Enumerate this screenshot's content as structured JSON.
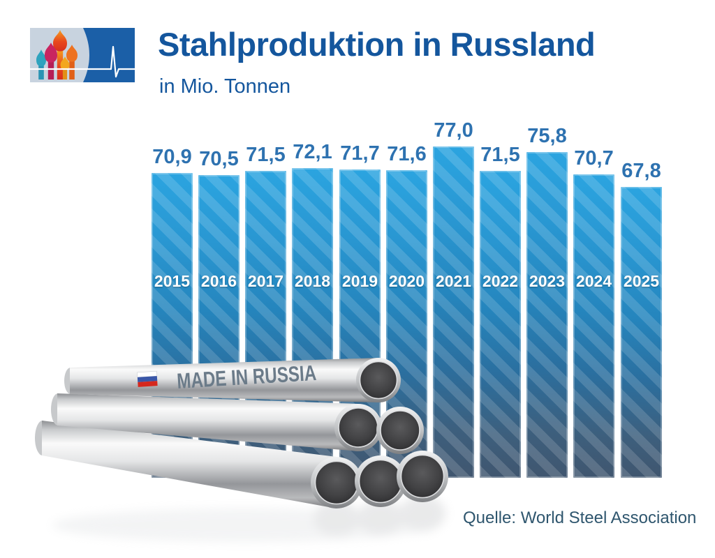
{
  "header": {
    "title": "Stahlproduktion in Russland",
    "subtitle": "in Mio. Tonnen",
    "title_color": "#14569D",
    "logo": {
      "left_motif": "st-basils-cathedral-domes",
      "right_motif": "heartbeat-pulse-line",
      "panel_light": "#C8D3DF",
      "panel_dark": "#1B5FA7",
      "dome_colors": [
        "#2FA3BE",
        "#C92460",
        "#E8471E",
        "#F3A71D",
        "#EE7220"
      ]
    }
  },
  "chart_data": {
    "type": "bar",
    "categories": [
      "2015",
      "2016",
      "2017",
      "2018",
      "2019",
      "2020",
      "2021",
      "2022",
      "2023",
      "2024",
      "2025"
    ],
    "values": [
      70.9,
      70.5,
      71.5,
      72.1,
      71.7,
      71.6,
      77.0,
      71.5,
      75.8,
      70.7,
      67.8
    ],
    "value_labels": [
      "70,9",
      "70,5",
      "71,5",
      "72,1",
      "71,7",
      "71,6",
      "77,0",
      "71,5",
      "75,8",
      "70,7",
      "67,8"
    ],
    "title": "Stahlproduktion in Russland",
    "xlabel": "",
    "ylabel": "Mio. Tonnen",
    "ylim": [
      0,
      80
    ],
    "grid": false,
    "legend": false,
    "bar_style": {
      "top_color": "#2BA4E0",
      "bottom_color": "#40566F",
      "stripe_overlay": "rgba(255,255,255,0.15)",
      "value_label_color": "#2E72B0",
      "year_label_color": "#FFFFFF"
    }
  },
  "pipes": {
    "stamp_text": "MADE IN RUSSIA",
    "stamp_color": "#6B7B89",
    "flag": "russia-flag",
    "flag_colors": [
      "#FFFFFF",
      "#3A57A8",
      "#D5281E"
    ]
  },
  "footer": {
    "source": "Quelle: World Steel Association"
  }
}
